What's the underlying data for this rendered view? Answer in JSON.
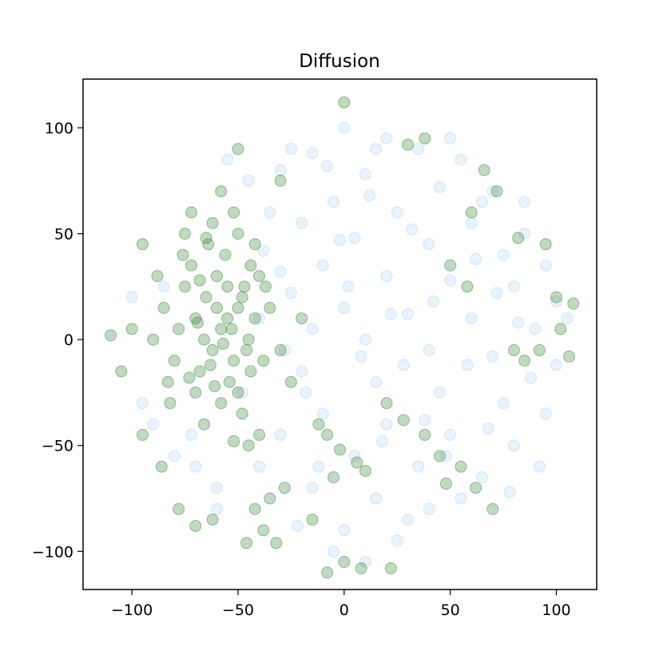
{
  "chart_data": {
    "type": "scatter",
    "title": "Diffusion",
    "xlabel": "",
    "ylabel": "",
    "xlim": [
      -123,
      119
    ],
    "ylim": [
      -118,
      123
    ],
    "xticks": [
      -100,
      -50,
      0,
      50,
      100
    ],
    "yticks": [
      -100,
      -50,
      0,
      50,
      100
    ],
    "xtick_labels": [
      "−100",
      "−50",
      "0",
      "50",
      "100"
    ],
    "ytick_labels": [
      "−100",
      "−50",
      "0",
      "50",
      "100"
    ],
    "grid": false,
    "series": [
      {
        "color": "#5aa7e6",
        "opacity": 0.14,
        "points": [
          [
            0,
            100
          ],
          [
            20,
            95
          ],
          [
            -15,
            88
          ],
          [
            35,
            90
          ],
          [
            55,
            85
          ],
          [
            -30,
            80
          ],
          [
            10,
            78
          ],
          [
            45,
            72
          ],
          [
            70,
            70
          ],
          [
            -5,
            65
          ],
          [
            25,
            60
          ],
          [
            60,
            55
          ],
          [
            85,
            50
          ],
          [
            -20,
            55
          ],
          [
            5,
            48
          ],
          [
            40,
            45
          ],
          [
            75,
            40
          ],
          [
            95,
            35
          ],
          [
            -10,
            35
          ],
          [
            20,
            30
          ],
          [
            50,
            28
          ],
          [
            80,
            25
          ],
          [
            100,
            18
          ],
          [
            -25,
            22
          ],
          [
            0,
            15
          ],
          [
            30,
            12
          ],
          [
            60,
            10
          ],
          [
            90,
            5
          ],
          [
            -15,
            5
          ],
          [
            10,
            0
          ],
          [
            40,
            -5
          ],
          [
            70,
            -8
          ],
          [
            100,
            -12
          ],
          [
            -20,
            -15
          ],
          [
            15,
            -20
          ],
          [
            45,
            -25
          ],
          [
            75,
            -30
          ],
          [
            95,
            -35
          ],
          [
            -10,
            -35
          ],
          [
            20,
            -40
          ],
          [
            50,
            -45
          ],
          [
            80,
            -50
          ],
          [
            -30,
            -45
          ],
          [
            5,
            -55
          ],
          [
            35,
            -60
          ],
          [
            65,
            -65
          ],
          [
            -15,
            -70
          ],
          [
            15,
            -75
          ],
          [
            40,
            -80
          ],
          [
            0,
            -90
          ],
          [
            25,
            -95
          ],
          [
            -40,
            -60
          ],
          [
            -60,
            -70
          ],
          [
            -80,
            -55
          ],
          [
            -90,
            -40
          ],
          [
            -100,
            20
          ],
          [
            -95,
            -30
          ],
          [
            -35,
            60
          ],
          [
            -45,
            75
          ],
          [
            -55,
            85
          ],
          [
            -25,
            90
          ],
          [
            15,
            90
          ],
          [
            50,
            95
          ],
          [
            65,
            65
          ],
          [
            85,
            65
          ],
          [
            105,
            10
          ],
          [
            -5,
            -100
          ],
          [
            10,
            -105
          ],
          [
            -70,
            -60
          ],
          [
            -85,
            25
          ],
          [
            30,
            -85
          ],
          [
            55,
            -75
          ],
          [
            -2,
            47
          ],
          [
            8,
            -8
          ],
          [
            -28,
            -5
          ],
          [
            62,
            38
          ],
          [
            88,
            -18
          ],
          [
            -40,
            10
          ],
          [
            -48,
            -25
          ],
          [
            12,
            68
          ],
          [
            28,
            -12
          ],
          [
            42,
            18
          ],
          [
            -8,
            82
          ],
          [
            78,
            -72
          ],
          [
            -60,
            -80
          ],
          [
            -22,
            -88
          ],
          [
            48,
            -55
          ],
          [
            68,
            -42
          ],
          [
            92,
            -60
          ],
          [
            -38,
            42
          ],
          [
            -12,
            -60
          ],
          [
            32,
            52
          ],
          [
            18,
            -48
          ],
          [
            -72,
            -45
          ],
          [
            58,
            -12
          ],
          [
            82,
            8
          ],
          [
            -30,
            32
          ],
          [
            2,
            25
          ],
          [
            38,
            -38
          ],
          [
            72,
            22
          ],
          [
            22,
            12
          ],
          [
            -18,
            -25
          ]
        ]
      },
      {
        "color": "#3d8a3d",
        "opacity": 0.32,
        "points": [
          [
            -60,
            30
          ],
          [
            -55,
            25
          ],
          [
            -65,
            20
          ],
          [
            -50,
            15
          ],
          [
            -70,
            10
          ],
          [
            -58,
            5
          ],
          [
            -45,
            0
          ],
          [
            -62,
            -5
          ],
          [
            -52,
            -10
          ],
          [
            -68,
            -15
          ],
          [
            -48,
            20
          ],
          [
            -72,
            35
          ],
          [
            -56,
            40
          ],
          [
            -40,
            30
          ],
          [
            -64,
            45
          ],
          [
            -50,
            50
          ],
          [
            -75,
            25
          ],
          [
            -42,
            10
          ],
          [
            -66,
            0
          ],
          [
            -54,
            -20
          ],
          [
            -78,
            5
          ],
          [
            -46,
            -5
          ],
          [
            -60,
            15
          ],
          [
            -70,
            -25
          ],
          [
            -58,
            -30
          ],
          [
            -80,
            -10
          ],
          [
            -44,
            35
          ],
          [
            -62,
            55
          ],
          [
            -76,
            40
          ],
          [
            -52,
            60
          ],
          [
            -85,
            15
          ],
          [
            -35,
            15
          ],
          [
            -38,
            -10
          ],
          [
            -82,
            -30
          ],
          [
            -66,
            -40
          ],
          [
            -48,
            -35
          ],
          [
            -90,
            0
          ],
          [
            -88,
            30
          ],
          [
            -72,
            60
          ],
          [
            -58,
            70
          ],
          [
            -100,
            5
          ],
          [
            -105,
            -15
          ],
          [
            -110,
            2
          ],
          [
            -95,
            -45
          ],
          [
            -95,
            45
          ],
          [
            -78,
            -80
          ],
          [
            -70,
            -88
          ],
          [
            -62,
            -85
          ],
          [
            -42,
            -80
          ],
          [
            -35,
            -75
          ],
          [
            -28,
            -70
          ],
          [
            -38,
            -90
          ],
          [
            -46,
            -96
          ],
          [
            -32,
            -96
          ],
          [
            -8,
            -45
          ],
          [
            -2,
            -52
          ],
          [
            6,
            -58
          ],
          [
            -12,
            -40
          ],
          [
            20,
            -30
          ],
          [
            28,
            -38
          ],
          [
            38,
            -45
          ],
          [
            45,
            -55
          ],
          [
            55,
            -60
          ],
          [
            62,
            -70
          ],
          [
            48,
            -68
          ],
          [
            70,
            -80
          ],
          [
            -15,
            -85
          ],
          [
            8,
            -108
          ],
          [
            22,
            -108
          ],
          [
            0,
            -105
          ],
          [
            -8,
            -110
          ],
          [
            30,
            92
          ],
          [
            38,
            95
          ],
          [
            60,
            60
          ],
          [
            66,
            80
          ],
          [
            72,
            70
          ],
          [
            82,
            48
          ],
          [
            95,
            45
          ],
          [
            100,
            20
          ],
          [
            108,
            17
          ],
          [
            102,
            5
          ],
          [
            106,
            -8
          ],
          [
            85,
            -10
          ],
          [
            92,
            -5
          ],
          [
            80,
            -5
          ],
          [
            50,
            35
          ],
          [
            58,
            25
          ],
          [
            -20,
            10
          ],
          [
            -25,
            -20
          ],
          [
            -50,
            90
          ],
          [
            -30,
            75
          ],
          [
            -45,
            -50
          ],
          [
            -52,
            -48
          ],
          [
            -30,
            -5
          ],
          [
            -40,
            -45
          ],
          [
            -86,
            -60
          ],
          [
            0,
            112
          ],
          [
            -5,
            -65
          ],
          [
            10,
            -62
          ],
          [
            -55,
            10
          ],
          [
            -63,
            -12
          ],
          [
            -47,
            25
          ],
          [
            -68,
            28
          ],
          [
            -57,
            -2
          ],
          [
            -73,
            -18
          ],
          [
            -50,
            -25
          ],
          [
            -65,
            48
          ],
          [
            -42,
            45
          ],
          [
            -75,
            50
          ],
          [
            -83,
            -20
          ],
          [
            -53,
            5
          ],
          [
            -44,
            -15
          ],
          [
            -61,
            -22
          ],
          [
            -69,
            8
          ],
          [
            -37,
            25
          ]
        ]
      }
    ]
  }
}
